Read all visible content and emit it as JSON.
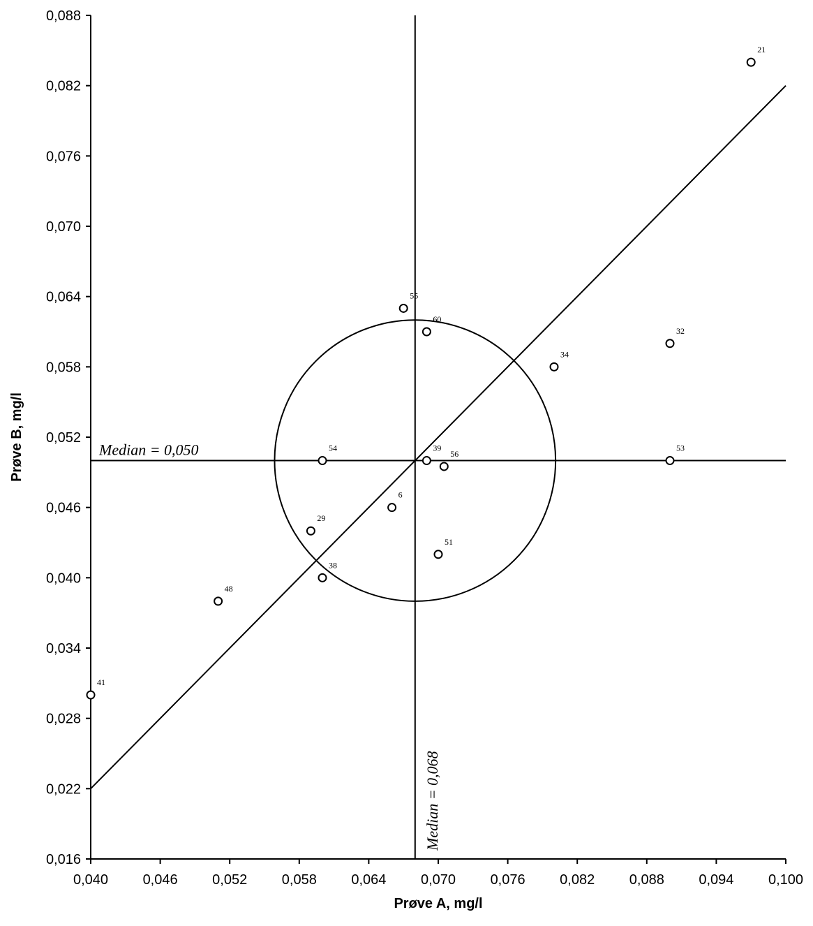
{
  "chart_data": {
    "type": "scatter",
    "xlabel": "Prøve A, mg/l",
    "ylabel": "Prøve B, mg/l",
    "xlim": [
      0.04,
      0.1
    ],
    "ylim": [
      0.016,
      0.088
    ],
    "x_ticks": [
      "0,040",
      "0,046",
      "0,052",
      "0,058",
      "0,064",
      "0,070",
      "0,076",
      "0,082",
      "0,088",
      "0,094",
      "0,100"
    ],
    "y_ticks": [
      "0,016",
      "0,022",
      "0,028",
      "0,034",
      "0,040",
      "0,046",
      "0,052",
      "0,058",
      "0,064",
      "0,070",
      "0,076",
      "0,082",
      "0,088"
    ],
    "grid": false,
    "median_x": 0.068,
    "median_y": 0.05,
    "median_x_label": "Median = 0,068",
    "median_y_label": "Median = 0,050",
    "diagonal": {
      "x": [
        0.04,
        0.1
      ],
      "y": [
        0.022,
        0.082
      ]
    },
    "circle": {
      "center_x": 0.068,
      "center_y": 0.05,
      "radius_y": 0.012
    },
    "points": [
      {
        "label": "21",
        "x": 0.097,
        "y": 0.084
      },
      {
        "label": "32",
        "x": 0.09,
        "y": 0.06
      },
      {
        "label": "34",
        "x": 0.08,
        "y": 0.058
      },
      {
        "label": "55",
        "x": 0.067,
        "y": 0.063
      },
      {
        "label": "60",
        "x": 0.069,
        "y": 0.061
      },
      {
        "label": "54",
        "x": 0.06,
        "y": 0.05
      },
      {
        "label": "39",
        "x": 0.069,
        "y": 0.05
      },
      {
        "label": "56",
        "x": 0.0705,
        "y": 0.0495
      },
      {
        "label": "53",
        "x": 0.09,
        "y": 0.05
      },
      {
        "label": "6",
        "x": 0.066,
        "y": 0.046
      },
      {
        "label": "29",
        "x": 0.059,
        "y": 0.044
      },
      {
        "label": "51",
        "x": 0.07,
        "y": 0.042
      },
      {
        "label": "38",
        "x": 0.06,
        "y": 0.04
      },
      {
        "label": "48",
        "x": 0.051,
        "y": 0.038
      },
      {
        "label": "41",
        "x": 0.04,
        "y": 0.03
      }
    ]
  }
}
